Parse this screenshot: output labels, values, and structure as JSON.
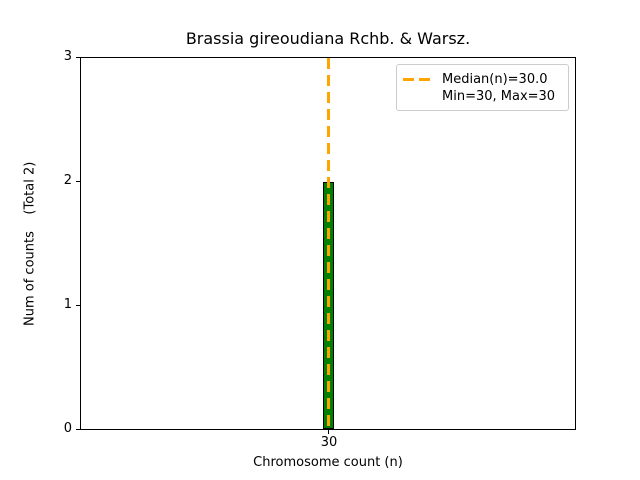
{
  "figure": {
    "title": "Brassia gireoudiana Rchb. & Warsz.",
    "xlabel": "Chromosome count (n)",
    "ylabel": "Num of counts    (Total 2)",
    "x_tick_labels": [
      "30"
    ],
    "y_tick_labels_top_to_bottom": [
      "3",
      "2",
      "1",
      "0"
    ],
    "legend": {
      "median_label": "Median(n)=30.0",
      "minmax_label": "Min=30, Max=30"
    },
    "colors": {
      "bar_fill": "#008000",
      "bar_edge": "#000000",
      "median_line": "#FFA500",
      "spine": "#000000",
      "legend_border": "#cccccc",
      "background": "#ffffff"
    }
  },
  "chart_data": {
    "type": "bar",
    "title": "Brassia gireoudiana Rchb. & Warsz.",
    "xlabel": "Chromosome count (n)",
    "ylabel": "Num of counts    (Total 2)",
    "categories": [
      30
    ],
    "values": [
      2
    ],
    "x": [
      30
    ],
    "xticks": [
      30
    ],
    "yticks": [
      0,
      1,
      2,
      3
    ],
    "ylim": [
      0,
      3
    ],
    "median_n": 30.0,
    "min_n": 30,
    "max_n": 30,
    "total_counts": 2,
    "grid": false,
    "legend_position": "upper right",
    "legend_entries": [
      "Median(n)=30.0",
      "Min=30, Max=30"
    ],
    "annotations": [
      "vertical dashed median line at x=30 spanning full plot height"
    ]
  }
}
